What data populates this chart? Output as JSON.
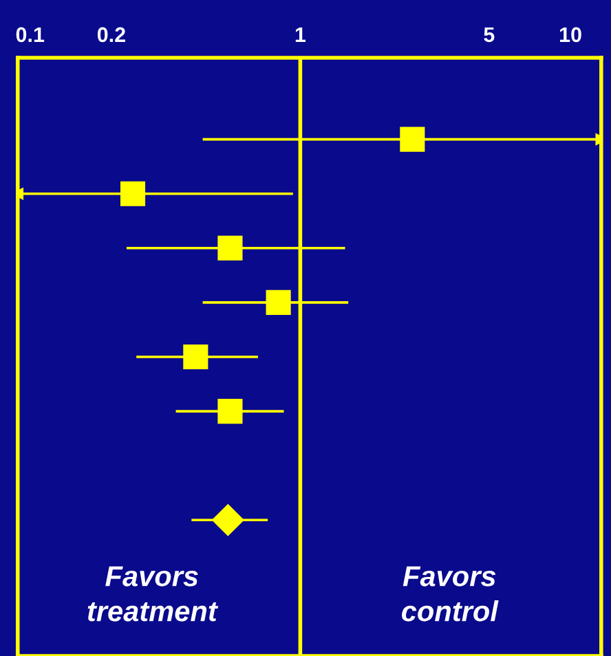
{
  "chart_data": {
    "type": "scatter",
    "orientation": "horizontal",
    "log": "x",
    "xlim": [
      0.09,
      13
    ],
    "xticks": [
      0.1,
      0.2,
      1,
      5,
      10
    ],
    "categories": [
      null,
      null,
      null,
      null,
      null,
      null,
      null,
      null,
      null,
      null,
      null
    ],
    "series": [
      {
        "type": "scatter",
        "marker": "square",
        "color": "#ffff00",
        "values": [
          null,
          2.6,
          0.24,
          0.55,
          0.83,
          0.41,
          0.55,
          null,
          null,
          null,
          null
        ],
        "errors": [
          null,
          [
            0.44,
            13
          ],
          [
            0.09,
            0.93
          ],
          [
            0.23,
            1.45
          ],
          [
            0.44,
            1.49
          ],
          [
            0.25,
            0.69
          ],
          [
            0.35,
            0.86
          ],
          null,
          null,
          null,
          null
        ]
      },
      {
        "type": "scatter",
        "marker": "diamond",
        "color": "#ffff00",
        "values": [
          null,
          null,
          null,
          null,
          null,
          null,
          null,
          null,
          0.54,
          null,
          null
        ],
        "errors": [
          null,
          null,
          null,
          null,
          null,
          null,
          null,
          null,
          [
            0.4,
            0.75
          ],
          null,
          null
        ]
      }
    ],
    "ref_lines": [
      {
        "axis": "x",
        "value": 1,
        "color": "#ffff00"
      }
    ],
    "annotations": [
      "Favors\ntreatment",
      "Favors\ncontrol"
    ],
    "grid": false,
    "legend": false
  }
}
